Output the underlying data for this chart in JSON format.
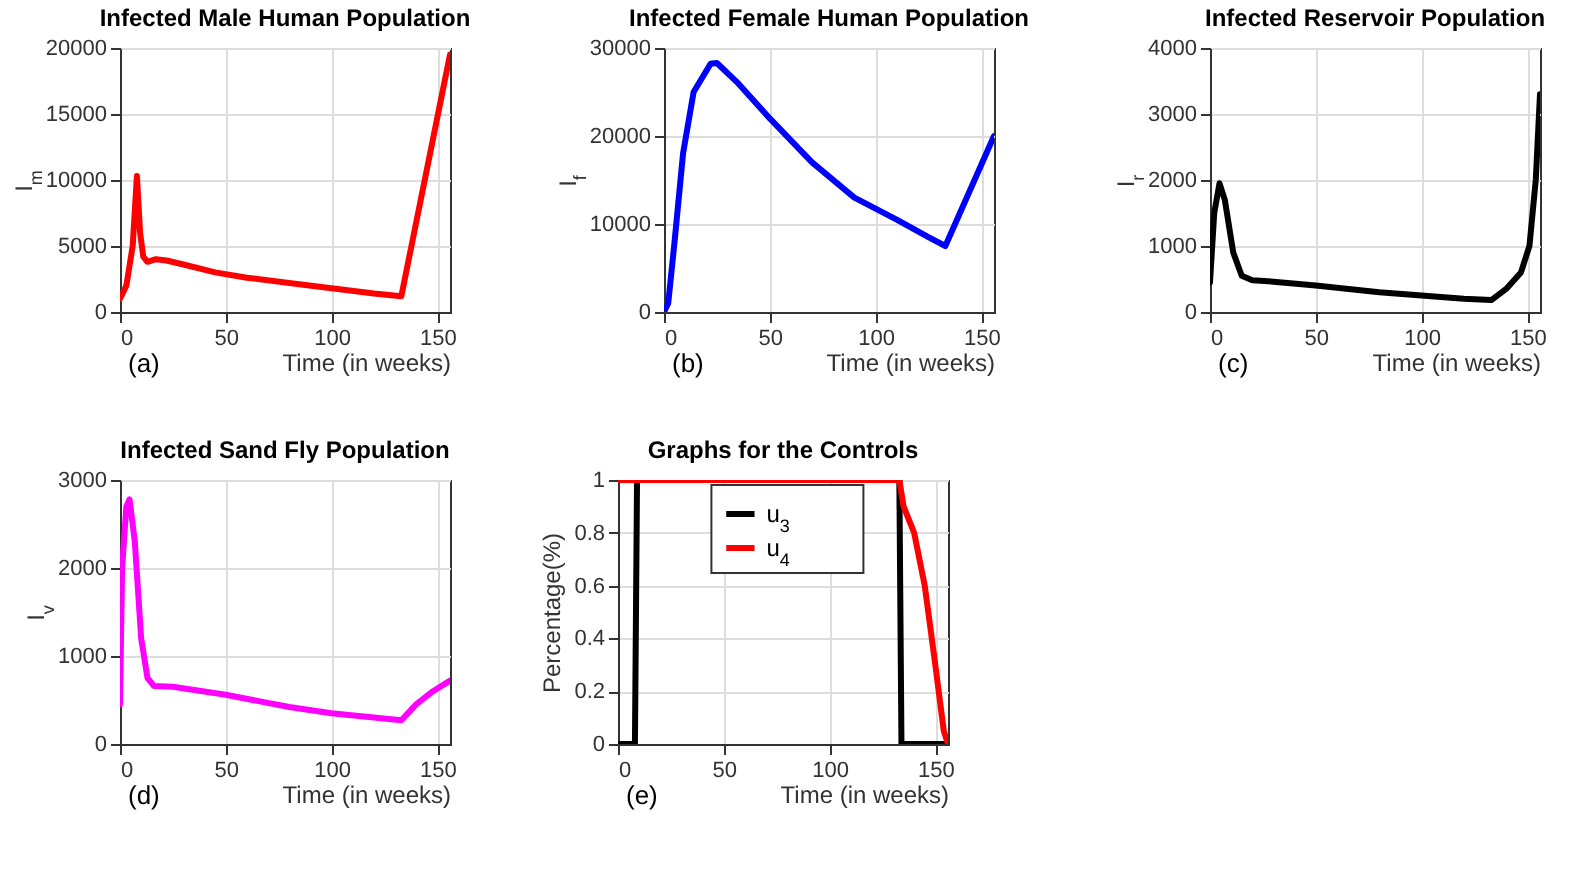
{
  "chart_data": [
    {
      "type": "line",
      "title": "Infected Male Human Population",
      "xlabel": "Time (in weeks)",
      "ylabel": "I$_{m}$",
      "annotations": [
        "(a)"
      ],
      "xlim": [
        0,
        156
      ],
      "xticks": [
        0,
        50,
        100,
        150
      ],
      "ylim": [
        0,
        20000
      ],
      "yticks": [
        0,
        5000,
        10000,
        15000,
        20000
      ],
      "grid": true,
      "x": [
        0,
        3,
        6,
        8,
        9.5,
        11,
        13,
        17,
        22,
        30,
        45,
        60,
        80,
        100,
        120,
        133,
        156
      ],
      "series": [
        {
          "color": "#ff0000",
          "values": [
            1000,
            2000,
            5000,
            10300,
            6000,
            4200,
            3800,
            4000,
            3900,
            3600,
            3000,
            2600,
            2200,
            1800,
            1400,
            1200,
            19500
          ]
        }
      ]
    },
    {
      "type": "line",
      "title": "Infected Female Human Population",
      "xlabel": "Time (in weeks)",
      "ylabel": "I$_{f}$",
      "annotations": [
        "(b)"
      ],
      "xlim": [
        0,
        156
      ],
      "xticks": [
        0,
        50,
        100,
        150
      ],
      "ylim": [
        0,
        30000
      ],
      "yticks": [
        0,
        10000,
        20000,
        30000
      ],
      "grid": true,
      "x": [
        0,
        2,
        5,
        9,
        14,
        22,
        25,
        35,
        50,
        70,
        90,
        110,
        125,
        133,
        156
      ],
      "series": [
        {
          "color": "#0000ff",
          "values": [
            0,
            1000,
            8000,
            18000,
            25000,
            28200,
            28300,
            26000,
            22000,
            17000,
            13000,
            10500,
            8500,
            7500,
            20000
          ]
        }
      ]
    },
    {
      "type": "line",
      "title": "Infected Reservoir Population",
      "xlabel": "Time (in weeks)",
      "ylabel": "I$_{r}$",
      "annotations": [
        "(c)"
      ],
      "xlim": [
        0,
        156
      ],
      "xticks": [
        0,
        50,
        100,
        150
      ],
      "ylim": [
        0,
        4000
      ],
      "yticks": [
        0,
        1000,
        2000,
        3000,
        4000
      ],
      "grid": true,
      "x": [
        0,
        2,
        4.5,
        7,
        11,
        15,
        20,
        30,
        50,
        80,
        100,
        120,
        133,
        140,
        147,
        151,
        154,
        156
      ],
      "series": [
        {
          "color": "#000000",
          "values": [
            450,
            1500,
            1950,
            1700,
            900,
            550,
            480,
            460,
            400,
            300,
            250,
            200,
            180,
            350,
            600,
            1000,
            2000,
            3300
          ]
        }
      ]
    },
    {
      "type": "line",
      "title": "Infected Sand Fly Population",
      "xlabel": "Time (in weeks)",
      "ylabel": "I$_{v}$",
      "annotations": [
        "(d)"
      ],
      "xlim": [
        0,
        156
      ],
      "xticks": [
        0,
        50,
        100,
        150
      ],
      "ylim": [
        0,
        3000
      ],
      "yticks": [
        0,
        1000,
        2000,
        3000
      ],
      "grid": true,
      "x": [
        0,
        1,
        3,
        4.5,
        7,
        10,
        13,
        16,
        25,
        50,
        80,
        100,
        120,
        133,
        140,
        148,
        156
      ],
      "series": [
        {
          "color": "#ff00ff",
          "values": [
            450,
            2000,
            2700,
            2780,
            2300,
            1200,
            750,
            660,
            650,
            560,
            420,
            350,
            300,
            270,
            450,
            600,
            720
          ]
        }
      ]
    },
    {
      "type": "line",
      "title": "Graphs for the Controls",
      "xlabel": "Time (in weeks)",
      "ylabel": "Percentage(%)",
      "annotations": [
        "(e)"
      ],
      "xlim": [
        0,
        156
      ],
      "xticks": [
        0,
        50,
        100,
        150
      ],
      "ylim": [
        0,
        1
      ],
      "yticks": [
        0,
        0.2,
        0.4,
        0.6,
        0.8,
        1
      ],
      "grid": true,
      "legend": "top",
      "series": [
        {
          "name": "u$_{3}$",
          "color": "#000000",
          "x": [
            0,
            8,
            9,
            133,
            134,
            156
          ],
          "values": [
            0,
            0,
            1,
            1,
            0,
            0
          ]
        },
        {
          "name": "u$_{4}$",
          "color": "#ff0000",
          "x": [
            0,
            133,
            135,
            140,
            145,
            150,
            154,
            156
          ],
          "values": [
            1,
            1,
            0.9,
            0.8,
            0.6,
            0.3,
            0.05,
            0
          ]
        }
      ]
    }
  ]
}
